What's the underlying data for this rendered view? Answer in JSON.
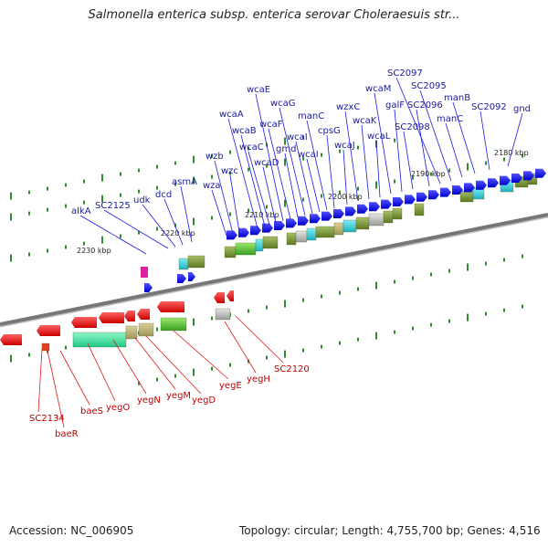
{
  "title": "Salmonella enterica subsp. enterica serovar Choleraesuis str...",
  "footer": {
    "accession": "Accession: NC_006905",
    "stats": "Topology: circular; Length: 4,755,700 bp; Genes: 4,516"
  },
  "scale_ticks": [
    "2230 kbp",
    "2220 kbp",
    "2210 kbp",
    "2200 kbp",
    "2190 kbp",
    "2180 kbp"
  ],
  "forward_genes": [
    "alkA",
    "SC2125",
    "udk",
    "dcd",
    "asmA",
    "wza",
    "wzb",
    "wzc",
    "wcaA",
    "wcaB",
    "wcaC",
    "wcaD",
    "wcaE",
    "wcaF",
    "gmd",
    "wcaG",
    "wcaI",
    "wcaI",
    "manC",
    "cpsG",
    "wcaJ",
    "wzxC",
    "wcaK",
    "wcaL",
    "wcaM",
    "galF",
    "SC2098",
    "SC2096",
    "SC2097",
    "SC2095",
    "manC",
    "manB",
    "SC2092",
    "gnd"
  ],
  "reverse_genes": [
    "SC2134",
    "baeR",
    "baeS",
    "yegO",
    "yegN",
    "yegM",
    "yegD",
    "yegE",
    "yegH",
    "SC2120"
  ],
  "colors": {
    "forward_label": "#1a1aa0",
    "reverse_label": "#c00000",
    "forward_cds": "#0000ee",
    "reverse_cds": "#ee0000",
    "backbone": "#777777",
    "tick_green": "#2e8b2e"
  }
}
